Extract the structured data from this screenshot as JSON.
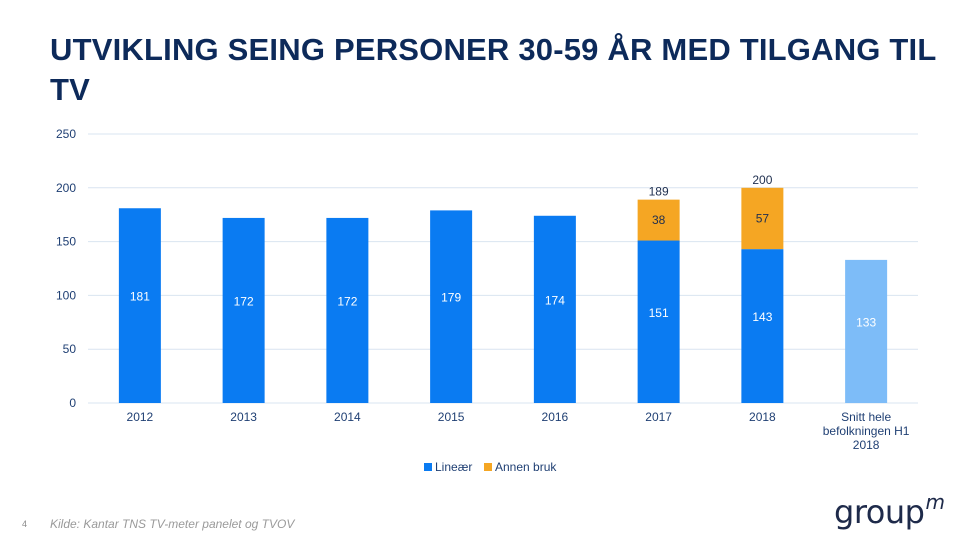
{
  "title": "UTVIKLING SEING PERSONER 30-59 ÅR MED TILGANG TIL TV",
  "page_number": "4",
  "source": "Kilde: Kantar TNS TV-meter panelet og TVOV",
  "logo": {
    "text": "group",
    "superscript": "m"
  },
  "colors": {
    "linear": "#0a7bf2",
    "other": "#f5a623",
    "average": "#7dbcf8",
    "grid": "#d9e4f0",
    "axis_text": "#1f3f73"
  },
  "chart_data": {
    "type": "bar",
    "stacked": true,
    "categories": [
      "2012",
      "2013",
      "2014",
      "2015",
      "2016",
      "2017",
      "2018",
      "Snitt hele befolkningen H1 2018"
    ],
    "series": [
      {
        "name": "Lineær",
        "values": [
          181,
          172,
          172,
          179,
          174,
          151,
          143,
          133
        ]
      },
      {
        "name": "Annen bruk",
        "values": [
          null,
          null,
          null,
          null,
          null,
          38,
          57,
          null
        ]
      }
    ],
    "totals": [
      null,
      null,
      null,
      null,
      null,
      189,
      200,
      null
    ],
    "highlight_category": "Snitt hele befolkningen H1 2018",
    "ylim": [
      0,
      250
    ],
    "yticks": [
      0,
      50,
      100,
      150,
      200,
      250
    ],
    "grid": true,
    "legend_position": "bottom",
    "xlabel": "",
    "ylabel": ""
  }
}
